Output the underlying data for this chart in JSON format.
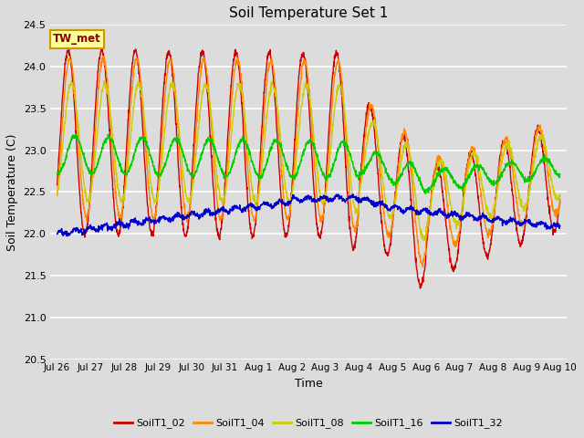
{
  "title": "Soil Temperature Set 1",
  "xlabel": "Time",
  "ylabel": "Soil Temperature (C)",
  "ylim": [
    20.5,
    24.5
  ],
  "background_color": "#dcdcdc",
  "plot_bg_color": "#dcdcdc",
  "grid_color": "white",
  "annotation_text": "TW_met",
  "annotation_bg": "#ffff99",
  "annotation_border": "#cc9900",
  "series_colors": {
    "SoilT1_02": "#cc0000",
    "SoilT1_04": "#ff8800",
    "SoilT1_08": "#cccc00",
    "SoilT1_16": "#00cc00",
    "SoilT1_32": "#0000cc"
  },
  "tick_labels": [
    "Jul 26",
    "Jul 27",
    "Jul 28",
    "Jul 29",
    "Jul 30",
    "Jul 31",
    "Aug 1",
    "Aug 2",
    "Aug 3",
    "Aug 4",
    "Aug 5",
    "Aug 6",
    "Aug 7",
    "Aug 8",
    "Aug 9",
    "Aug 10"
  ],
  "tick_positions": [
    0,
    1,
    2,
    3,
    4,
    5,
    6,
    7,
    8,
    9,
    10,
    11,
    12,
    13,
    14,
    15
  ]
}
